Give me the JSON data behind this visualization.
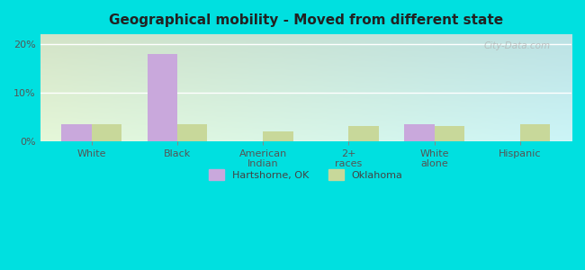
{
  "title": "Geographical mobility - Moved from different state",
  "categories": [
    "White",
    "Black",
    "American\nIndian",
    "2+\nraces",
    "White\nalone",
    "Hispanic"
  ],
  "hartshorne": [
    3.5,
    18.0,
    0.0,
    0.0,
    3.5,
    0.0
  ],
  "oklahoma": [
    3.5,
    3.5,
    2.0,
    3.0,
    3.0,
    3.5
  ],
  "hartshorne_color": "#c9a8dc",
  "oklahoma_color": "#c8d89a",
  "ylim": [
    0,
    22
  ],
  "yticks": [
    0,
    10,
    20
  ],
  "ytick_labels": [
    "0%",
    "10%",
    "20%"
  ],
  "legend_labels": [
    "Hartshorne, OK",
    "Oklahoma"
  ],
  "bar_width": 0.35,
  "outer_color": "#00e0e0",
  "watermark": "City-Data.com"
}
